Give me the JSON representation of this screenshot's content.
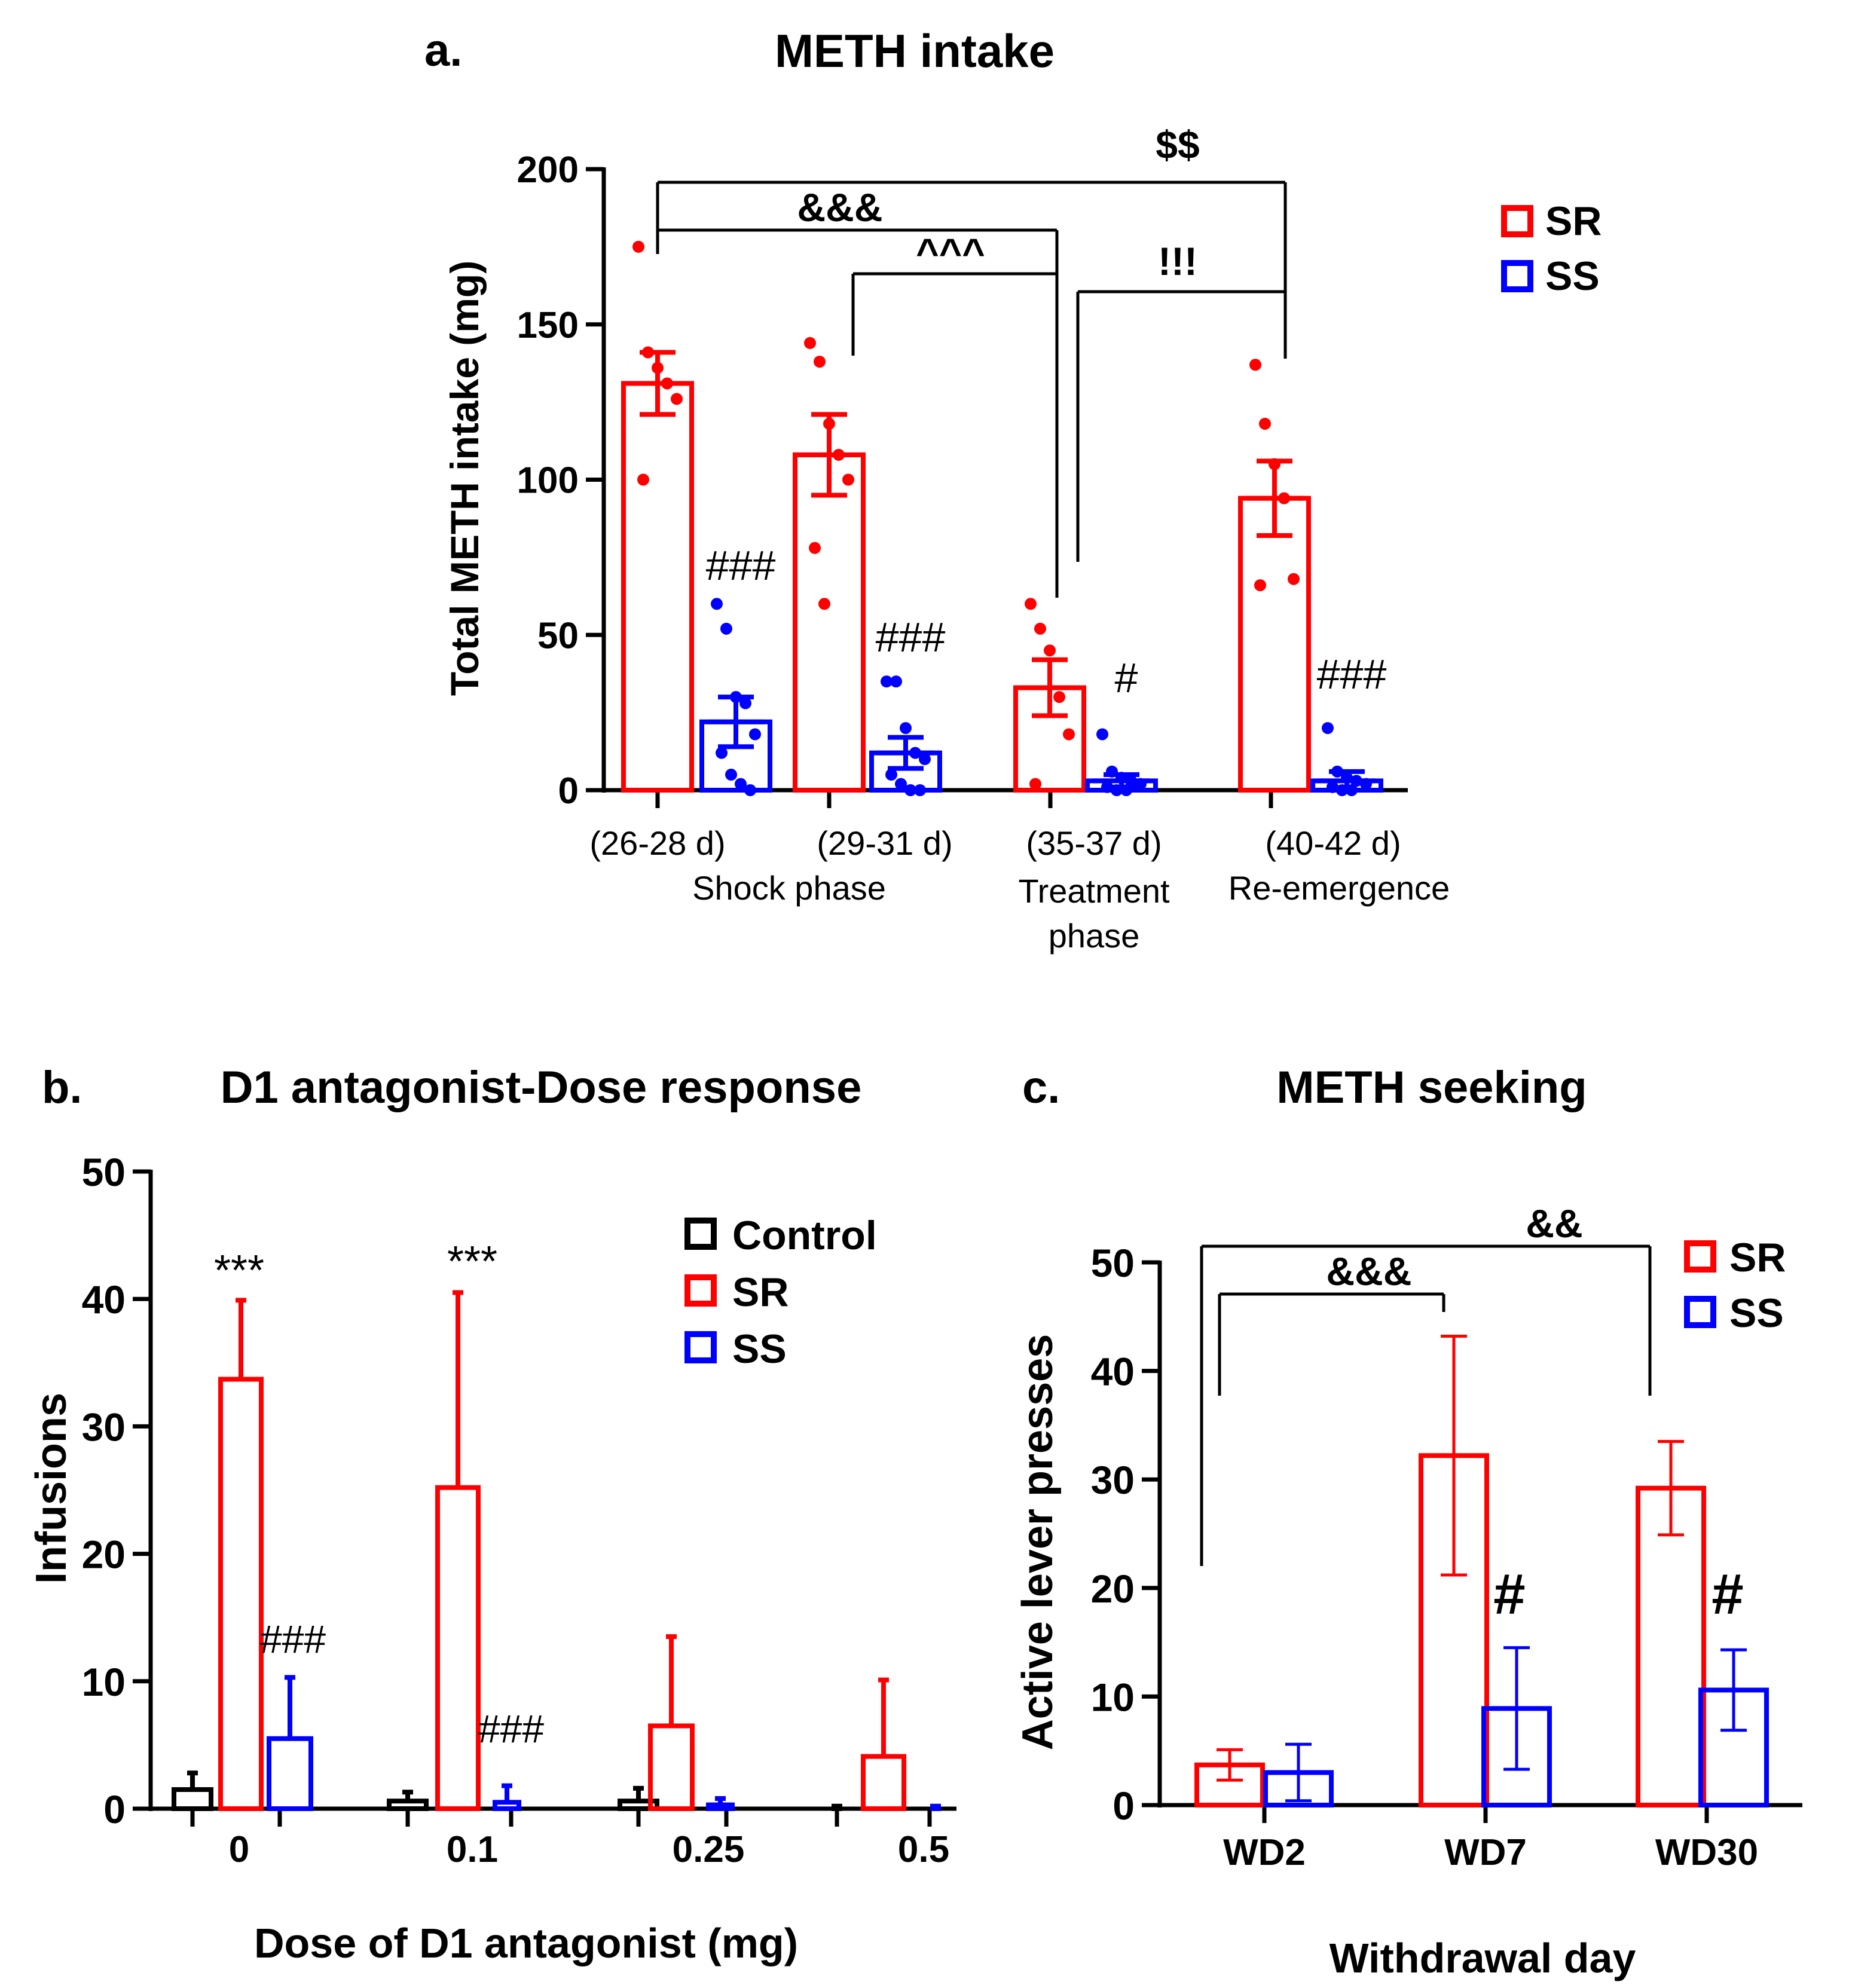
{
  "colors": {
    "SR": "#ff0000",
    "SS": "#0000ff",
    "Control": "#000000",
    "axis": "#000000"
  },
  "chart_data": [
    {
      "panel": "a.",
      "type": "bar",
      "title": "METH intake",
      "ylabel": "Total METH intake (mg)",
      "ylim": [
        0,
        200
      ],
      "yticks": [
        0,
        50,
        100,
        150,
        200
      ],
      "categories": [
        "(26-28 d)",
        "(29-31 d)",
        "(35-37 d)",
        "(40-42 d)"
      ],
      "phases": [
        "Shock phase",
        "Treatment",
        "phase",
        "Re-emergence"
      ],
      "legend": [
        "SR",
        "SS"
      ],
      "series": [
        {
          "name": "SR",
          "values": [
            131,
            108,
            33,
            94
          ],
          "errors": [
            10,
            13,
            9,
            12
          ],
          "points": [
            [
              175,
              141,
              136,
              131,
              126,
              100
            ],
            [
              144,
              138,
              118,
              108,
              100,
              78,
              60
            ],
            [
              60,
              52,
              45,
              30,
              18,
              2
            ],
            [
              137,
              118,
              105,
              94,
              68,
              66
            ]
          ]
        },
        {
          "name": "SS",
          "values": [
            22,
            12,
            3,
            3
          ],
          "errors": [
            8,
            5,
            2,
            3
          ],
          "points": [
            [
              60,
              52,
              30,
              28,
              18,
              12,
              5,
              2,
              0
            ],
            [
              35,
              35,
              20,
              12,
              10,
              5,
              2,
              0,
              0
            ],
            [
              18,
              6,
              4,
              3,
              2,
              1,
              0,
              0
            ],
            [
              20,
              6,
              4,
              3,
              2,
              1,
              0,
              0
            ]
          ]
        }
      ],
      "within_labels": [
        "###",
        "###",
        "#",
        "###"
      ],
      "comparisons": [
        {
          "label": "$$",
          "from": 0,
          "to": 3
        },
        {
          "label": "&&&",
          "from": 0,
          "to": 2
        },
        {
          "label": "^^^",
          "from": 1,
          "to": 2
        },
        {
          "label": "!!!",
          "from": 2,
          "to": 3
        }
      ]
    },
    {
      "panel": "b.",
      "type": "bar",
      "title": "D1 antagonist-Dose response",
      "xlabel": "Dose of D1 antagonist (mg)",
      "ylabel": "Infusions",
      "ylim": [
        0,
        50
      ],
      "yticks": [
        0,
        10,
        20,
        30,
        40,
        50
      ],
      "categories": [
        "0",
        "0.1",
        "0.25",
        "0.5"
      ],
      "legend": [
        "Control",
        "SR",
        "SS"
      ],
      "series": [
        {
          "name": "Control",
          "values": [
            1.5,
            0.6,
            0.6,
            0.1
          ],
          "errors": [
            1.3,
            0.7,
            1.0,
            0.1
          ]
        },
        {
          "name": "SR",
          "values": [
            33.7,
            25.2,
            6.5,
            4.1
          ],
          "errors": [
            6.2,
            15.3,
            7.0,
            6.0
          ]
        },
        {
          "name": "SS",
          "values": [
            5.5,
            0.5,
            0.3,
            0.1
          ],
          "errors": [
            4.8,
            1.3,
            0.5,
            0.1
          ]
        }
      ],
      "annotations": [
        "***",
        "***",
        "###",
        "###"
      ]
    },
    {
      "panel": "c.",
      "type": "bar",
      "title": "METH seeking",
      "xlabel": "Withdrawal day",
      "ylabel": "Active lever presses",
      "ylim": [
        0,
        50
      ],
      "yticks": [
        0,
        10,
        20,
        30,
        40,
        50
      ],
      "categories": [
        "WD2",
        "WD7",
        "WD30"
      ],
      "legend": [
        "SR",
        "SS"
      ],
      "series": [
        {
          "name": "SR",
          "values": [
            3.7,
            32.2,
            29.2
          ],
          "errors": [
            1.4,
            11.0,
            4.3
          ]
        },
        {
          "name": "SS",
          "values": [
            3.0,
            8.9,
            10.6
          ],
          "errors": [
            2.6,
            5.6,
            3.7
          ]
        }
      ],
      "annotations": [
        "#",
        "#"
      ],
      "comparisons": [
        {
          "label": "&&&",
          "from": 0,
          "to": 1
        },
        {
          "label": "&&",
          "from": 0,
          "to": 2
        }
      ]
    }
  ]
}
